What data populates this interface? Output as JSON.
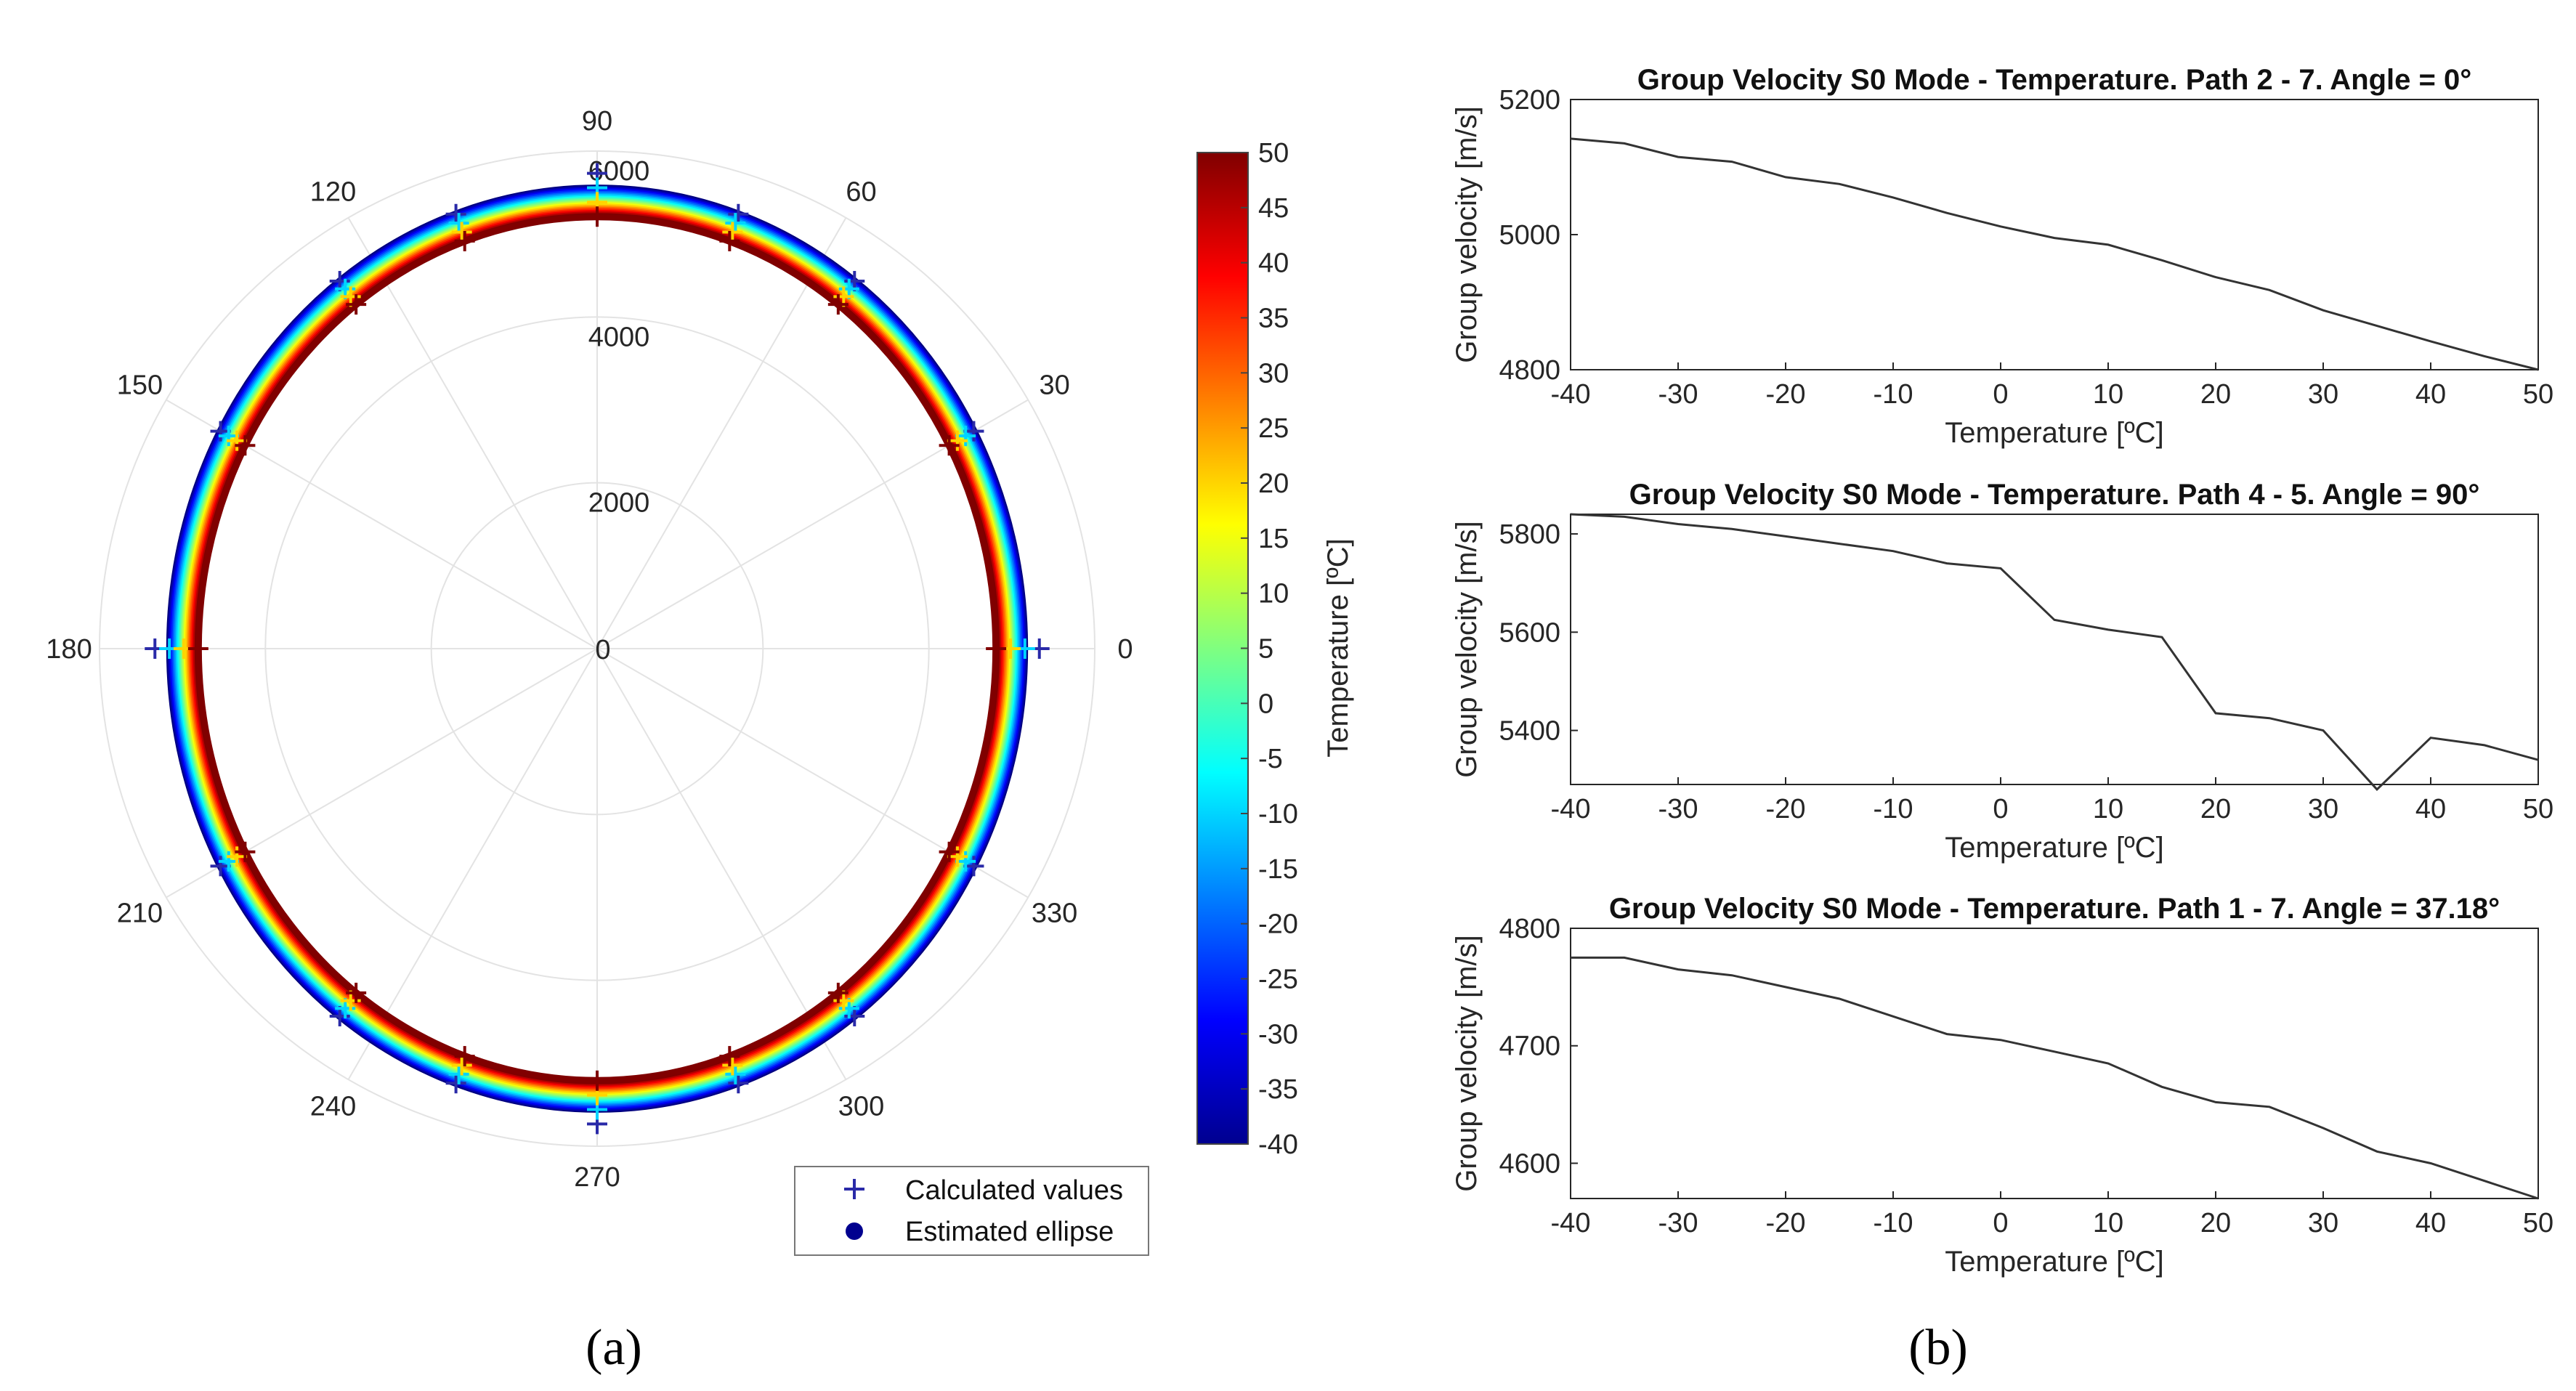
{
  "panel_labels": [
    "(a)",
    "(b)"
  ],
  "chart_data": [
    {
      "type": "polar",
      "panel": "(a)",
      "angle_ticks": [
        "0",
        "30",
        "60",
        "90",
        "120",
        "150",
        "180",
        "210",
        "240",
        "270",
        "300",
        "330"
      ],
      "radial_ticks": [
        "0",
        "2000",
        "4000",
        "6000"
      ],
      "radial_range": [
        0,
        6000
      ],
      "ellipse": {
        "semi_axis_0deg": 5000,
        "semi_axis_90deg": 5400
      },
      "temperature_range": [
        -40,
        50
      ],
      "temperature_step": 5,
      "velocity_slope_per_degC": -3.8,
      "calculated_angles": [
        0,
        30,
        55,
        72,
        90,
        108,
        125,
        150,
        180,
        210,
        235,
        252,
        270,
        288,
        305,
        330
      ],
      "colorbar": {
        "label": "Temperature [ºC]",
        "ticks": [
          "50",
          "45",
          "40",
          "35",
          "30",
          "25",
          "20",
          "15",
          "10",
          "5",
          "0",
          "-5",
          "-10",
          "-15",
          "-20",
          "-25",
          "-30",
          "-35",
          "-40"
        ]
      },
      "legend": [
        {
          "label": "Calculated values",
          "marker": "plus"
        },
        {
          "label": "Estimated ellipse",
          "marker": "dot"
        }
      ]
    },
    {
      "type": "line",
      "panel": "(b)",
      "title": "Group Velocity S0 Mode - Temperature. Path 2 - 7. Angle = 0°",
      "xlabel": "Temperature [ºC]",
      "ylabel": "Group velocity [m/s]",
      "xlim": [
        -40,
        50
      ],
      "ylim": [
        4800,
        5200
      ],
      "xticks": [
        "-40",
        "-30",
        "-20",
        "-10",
        "0",
        "10",
        "20",
        "30",
        "40",
        "50"
      ],
      "yticks": [
        "4800",
        "5000",
        "5200"
      ],
      "x": [
        -40,
        -35,
        -30,
        -25,
        -20,
        -15,
        -10,
        -5,
        0,
        5,
        10,
        15,
        20,
        25,
        30,
        35,
        40,
        45,
        50
      ],
      "y": [
        5142,
        5135,
        5115,
        5108,
        5085,
        5075,
        5055,
        5032,
        5012,
        4995,
        4985,
        4962,
        4937,
        4918,
        4888,
        4865,
        4842,
        4820,
        4800
      ]
    },
    {
      "type": "line",
      "panel": "(b)",
      "title": "Group Velocity S0 Mode - Temperature. Path 4 - 5. Angle = 90°",
      "xlabel": "Temperature [ºC]",
      "ylabel": "Group velocity [m/s]",
      "xlim": [
        -40,
        50
      ],
      "ylim": [
        5290,
        5840
      ],
      "xticks": [
        "-40",
        "-30",
        "-20",
        "-10",
        "0",
        "10",
        "20",
        "30",
        "40",
        "50"
      ],
      "yticks": [
        "5400",
        "5600",
        "5800"
      ],
      "x": [
        -40,
        -35,
        -30,
        -25,
        -20,
        -15,
        -10,
        -5,
        0,
        5,
        10,
        15,
        20,
        25,
        30,
        35,
        40,
        45,
        50
      ],
      "y": [
        5840,
        5835,
        5820,
        5810,
        5795,
        5780,
        5765,
        5740,
        5730,
        5625,
        5605,
        5590,
        5435,
        5425,
        5400,
        5280,
        5385,
        5370,
        5340
      ]
    },
    {
      "type": "line",
      "panel": "(b)",
      "title": "Group Velocity S0 Mode - Temperature. Path 1 - 7. Angle = 37.18°",
      "xlabel": "Temperature [ºC]",
      "ylabel": "Group velocity [m/s]",
      "xlim": [
        -40,
        50
      ],
      "ylim": [
        4570,
        4800
      ],
      "xticks": [
        "-40",
        "-30",
        "-20",
        "-10",
        "0",
        "10",
        "20",
        "30",
        "40",
        "50"
      ],
      "yticks": [
        "4600",
        "4700",
        "4800"
      ],
      "x": [
        -40,
        -35,
        -30,
        -25,
        -20,
        -15,
        -10,
        -5,
        0,
        5,
        10,
        15,
        20,
        25,
        30,
        35,
        40,
        45,
        50
      ],
      "y": [
        4775,
        4775,
        4765,
        4760,
        4750,
        4740,
        4725,
        4710,
        4705,
        4695,
        4685,
        4665,
        4652,
        4648,
        4630,
        4610,
        4600,
        4585,
        4570
      ]
    }
  ]
}
